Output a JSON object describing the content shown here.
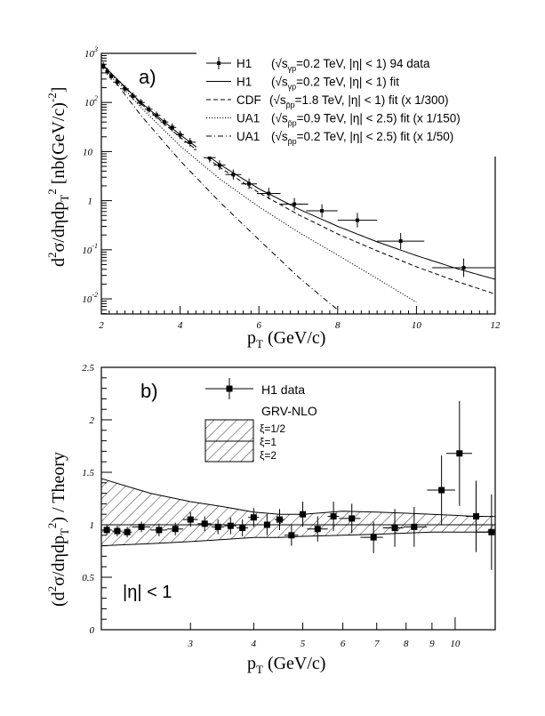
{
  "chart_data": [
    {
      "panel": "a",
      "type": "scatter",
      "panel_label": "a)",
      "xlabel": "p_T  (GeV/c)",
      "ylabel": "d²σ/dηdp_T² [nb(GeV/c)⁻²]",
      "xscale": "linear",
      "yscale": "log",
      "xlim": [
        2,
        12
      ],
      "ylim": [
        0.005,
        1000
      ],
      "x_ticks": [
        "2",
        "4",
        "6",
        "8",
        "10",
        "12"
      ],
      "x_tick_values": [
        2,
        4,
        6,
        8,
        10,
        12
      ],
      "y_ticks": [
        "10",
        "10",
        "10",
        "1",
        "10",
        "10"
      ],
      "y_tick_exponents": [
        "3",
        "2",
        "",
        "",
        "-1",
        "-2"
      ],
      "y_tick_values": [
        1000,
        100,
        10,
        1,
        0.1,
        0.01
      ],
      "legend_position": "top-right",
      "legend": [
        {
          "style": "data",
          "name": "H1",
          "desc_pre": "(√s",
          "sub": "γp",
          "desc_post": "=0.2 TeV, |η| < 1) 94 data"
        },
        {
          "style": "solid",
          "name": "H1",
          "desc_pre": "(√s",
          "sub": "γp",
          "desc_post": "=0.2 TeV, |η| < 1) fit"
        },
        {
          "style": "dashed",
          "name": "CDF",
          "desc_pre": "(√s",
          "sub": "p̄p",
          "desc_post": "=1.8 TeV, |η| < 1) fit (x 1/300)"
        },
        {
          "style": "dotted",
          "name": "UA1",
          "desc_pre": "(√s",
          "sub": "p̄p",
          "desc_post": "=0.9 TeV, |η| < 2.5) fit (x 1/150)"
        },
        {
          "style": "dashdot",
          "name": "UA1",
          "desc_pre": "(√s",
          "sub": "p̄p",
          "desc_post": "=0.2 TeV, |η| < 2.5) fit (x 1/50)"
        }
      ],
      "series": [
        {
          "name": "H1 94 data",
          "style": "data",
          "points": [
            {
              "x": 2.05,
              "y": 560,
              "xerr": 0.05
            },
            {
              "x": 2.15,
              "y": 430,
              "xerr": 0.05
            },
            {
              "x": 2.25,
              "y": 340,
              "xerr": 0.05
            },
            {
              "x": 2.4,
              "y": 260,
              "xerr": 0.1
            },
            {
              "x": 2.6,
              "y": 190,
              "xerr": 0.1
            },
            {
              "x": 2.8,
              "y": 135,
              "xerr": 0.1
            },
            {
              "x": 3.0,
              "y": 100,
              "xerr": 0.1
            },
            {
              "x": 3.2,
              "y": 73,
              "xerr": 0.1
            },
            {
              "x": 3.4,
              "y": 55,
              "xerr": 0.1
            },
            {
              "x": 3.6,
              "y": 40,
              "xerr": 0.1
            },
            {
              "x": 3.8,
              "y": 31,
              "xerr": 0.1
            },
            {
              "x": 4.0,
              "y": 22,
              "xerr": 0.1
            },
            {
              "x": 4.25,
              "y": 15.5,
              "xerr": 0.15
            },
            {
              "x": 4.5,
              "y": 11,
              "xerr": 0.15
            },
            {
              "x": 4.75,
              "y": 7.5,
              "xerr": 0.15
            },
            {
              "x": 5.0,
              "y": 5.3,
              "xerr": 0.15
            },
            {
              "x": 5.35,
              "y": 3.4,
              "xerr": 0.2
            },
            {
              "x": 5.75,
              "y": 2.2,
              "xerr": 0.2
            },
            {
              "x": 6.25,
              "y": 1.4,
              "xerr": 0.3
            },
            {
              "x": 6.9,
              "y": 0.85,
              "xerr": 0.35
            },
            {
              "x": 7.6,
              "y": 0.62,
              "xerr": 0.4
            },
            {
              "x": 8.5,
              "y": 0.4,
              "xerr": 0.5
            },
            {
              "x": 9.6,
              "y": 0.15,
              "xerr": 0.6
            },
            {
              "x": 11.2,
              "y": 0.043,
              "xerr": 0.8
            }
          ]
        },
        {
          "name": "H1 fit",
          "style": "solid",
          "x": [
            2,
            3,
            4,
            5,
            6,
            7,
            8,
            9,
            10,
            11,
            12
          ],
          "y": [
            620,
            100,
            22,
            5.5,
            1.75,
            0.68,
            0.3,
            0.145,
            0.076,
            0.042,
            0.025
          ]
        },
        {
          "name": "CDF fit (x 1/300)",
          "style": "dashed",
          "x": [
            2,
            3,
            4,
            5,
            6,
            7,
            8,
            9,
            10,
            11,
            12
          ],
          "y": [
            620,
            95,
            19.5,
            4.8,
            1.45,
            0.52,
            0.21,
            0.095,
            0.045,
            0.023,
            0.0125
          ]
        },
        {
          "name": "UA1 0.9 TeV fit (x 1/150)",
          "style": "dotted",
          "x": [
            2,
            3,
            4,
            5,
            6,
            7,
            8,
            9,
            10
          ],
          "y": [
            620,
            80,
            13,
            2.8,
            0.75,
            0.23,
            0.078,
            0.026,
            0.0085
          ]
        },
        {
          "name": "UA1 0.2 TeV fit (x 1/50)",
          "style": "dashdot",
          "x": [
            2,
            3,
            4,
            5,
            6,
            7,
            7.6,
            8
          ],
          "y": [
            620,
            55,
            6.5,
            0.95,
            0.16,
            0.028,
            0.011,
            0.006
          ]
        }
      ]
    },
    {
      "panel": "b",
      "type": "scatter",
      "panel_label": "b)",
      "xlabel": "p_T  (GeV/c)",
      "ylabel": "(d²σ/dηdp_T²) / Theory",
      "xscale": "log",
      "yscale": "linear",
      "xlim": [
        2,
        12
      ],
      "ylim": [
        0,
        2.5
      ],
      "x_ticks": [
        "3",
        "4",
        "5",
        "6",
        "7",
        "8",
        "9",
        "10"
      ],
      "x_tick_values": [
        3,
        4,
        5,
        6,
        7,
        8,
        9,
        10
      ],
      "y_ticks": [
        "0",
        "0.5",
        "1",
        "1.5",
        "2",
        "2.5"
      ],
      "y_tick_values": [
        0,
        0.5,
        1,
        1.5,
        2,
        2.5
      ],
      "annotation": "|η| < 1",
      "legend_position": "top-center",
      "legend": {
        "data_label": "H1 data",
        "theory_label": "GRV-NLO",
        "xi_labels": [
          "ξ=1/2",
          "ξ=1",
          "ξ=2"
        ]
      },
      "band": {
        "name": "GRV-NLO scale band",
        "x": [
          2.0,
          2.5,
          3.0,
          3.5,
          4.0,
          4.5,
          5.0,
          6.0,
          7.0,
          8.0,
          9.0,
          10.0,
          11.0,
          12.0
        ],
        "upper": [
          1.44,
          1.3,
          1.22,
          1.17,
          1.12,
          1.1,
          1.1,
          1.13,
          1.12,
          1.11,
          1.1,
          1.09,
          1.08,
          1.08
        ],
        "central": [
          1.0,
          1.0,
          1.0,
          1.0,
          1.0,
          1.0,
          1.0,
          1.0,
          1.0,
          1.0,
          1.0,
          1.0,
          1.0,
          1.0
        ],
        "lower": [
          0.8,
          0.82,
          0.84,
          0.86,
          0.88,
          0.88,
          0.89,
          0.9,
          0.91,
          0.92,
          0.93,
          0.93,
          0.93,
          0.93
        ]
      },
      "series": [
        {
          "name": "H1 data",
          "points": [
            {
              "x": 2.05,
              "y": 0.95,
              "yerr": 0.05,
              "xlo": 2.0,
              "xhi": 2.1
            },
            {
              "x": 2.15,
              "y": 0.94,
              "yerr": 0.05,
              "xlo": 2.1,
              "xhi": 2.2
            },
            {
              "x": 2.25,
              "y": 0.93,
              "yerr": 0.05,
              "xlo": 2.2,
              "xhi": 2.3
            },
            {
              "x": 2.4,
              "y": 0.98,
              "yerr": 0.05,
              "xlo": 2.3,
              "xhi": 2.5
            },
            {
              "x": 2.6,
              "y": 0.95,
              "yerr": 0.06,
              "xlo": 2.5,
              "xhi": 2.7
            },
            {
              "x": 2.8,
              "y": 0.96,
              "yerr": 0.06,
              "xlo": 2.7,
              "xhi": 2.9
            },
            {
              "x": 3.0,
              "y": 1.05,
              "yerr": 0.07,
              "xlo": 2.9,
              "xhi": 3.1
            },
            {
              "x": 3.2,
              "y": 1.01,
              "yerr": 0.07,
              "xlo": 3.1,
              "xhi": 3.3
            },
            {
              "x": 3.4,
              "y": 0.98,
              "yerr": 0.07,
              "xlo": 3.3,
              "xhi": 3.5
            },
            {
              "x": 3.6,
              "y": 0.99,
              "yerr": 0.08,
              "xlo": 3.5,
              "xhi": 3.7
            },
            {
              "x": 3.8,
              "y": 0.97,
              "yerr": 0.08,
              "xlo": 3.7,
              "xhi": 3.9
            },
            {
              "x": 4.0,
              "y": 1.07,
              "yerr": 0.09,
              "xlo": 3.9,
              "xhi": 4.1
            },
            {
              "x": 4.25,
              "y": 1.0,
              "yerr": 0.1,
              "xlo": 4.1,
              "xhi": 4.4
            },
            {
              "x": 4.5,
              "y": 1.05,
              "yerr": 0.1,
              "xlo": 4.4,
              "xhi": 4.6
            },
            {
              "x": 4.75,
              "y": 0.9,
              "yerr": 0.1,
              "xlo": 4.6,
              "xhi": 4.9
            },
            {
              "x": 5.0,
              "y": 1.1,
              "yerr": 0.12,
              "xlo": 4.9,
              "xhi": 5.1
            },
            {
              "x": 5.35,
              "y": 0.96,
              "yerr": 0.12,
              "xlo": 5.1,
              "xhi": 5.6
            },
            {
              "x": 5.75,
              "y": 1.08,
              "yerr": 0.14,
              "xlo": 5.6,
              "xhi": 5.9
            },
            {
              "x": 6.25,
              "y": 1.06,
              "yerr": 0.14,
              "xlo": 5.9,
              "xhi": 6.5
            },
            {
              "x": 6.9,
              "y": 0.88,
              "yerr": 0.15,
              "xlo": 6.5,
              "xhi": 7.2
            },
            {
              "x": 7.6,
              "y": 0.97,
              "yerr": 0.18,
              "xlo": 7.2,
              "xhi": 7.9
            },
            {
              "x": 8.3,
              "y": 0.98,
              "yerr": 0.19,
              "xlo": 7.9,
              "xhi": 8.8
            },
            {
              "x": 9.4,
              "y": 1.33,
              "yerr": 0.33,
              "xlo": 8.8,
              "xhi": 10.0
            },
            {
              "x": 10.2,
              "y": 1.68,
              "yerr": 0.5,
              "xlo": 9.6,
              "xhi": 10.8
            },
            {
              "x": 11.0,
              "y": 1.08,
              "yerr": 0.34,
              "xlo": 10.5,
              "xhi": 11.4
            },
            {
              "x": 11.8,
              "y": 0.93,
              "yerr": 0.36,
              "xlo": 11.0,
              "xhi": 12.0
            }
          ]
        }
      ]
    }
  ]
}
